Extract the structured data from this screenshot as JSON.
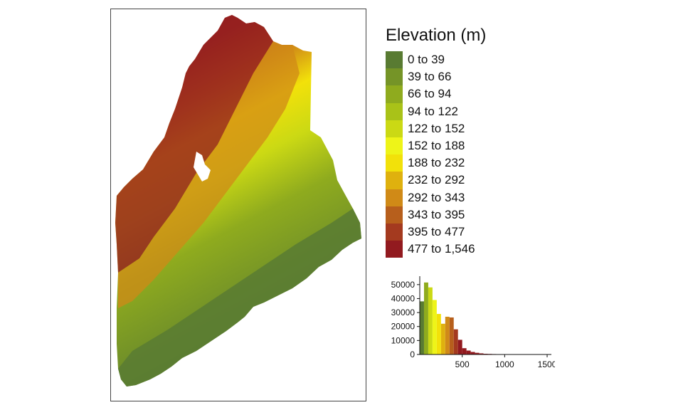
{
  "legend": {
    "title": "Elevation (m)",
    "classes": [
      {
        "label": "0 to 39",
        "color": "#597b32"
      },
      {
        "label": "39 to 66",
        "color": "#759427"
      },
      {
        "label": "66 to 94",
        "color": "#8fab1e"
      },
      {
        "label": "94 to 122",
        "color": "#a9c218"
      },
      {
        "label": "122 to 152",
        "color": "#cbd914"
      },
      {
        "label": "152 to 188",
        "color": "#eef418"
      },
      {
        "label": "188 to 232",
        "color": "#f2e10a"
      },
      {
        "label": "232 to 292",
        "color": "#dfb10e"
      },
      {
        "label": "292 to 343",
        "color": "#d08a17"
      },
      {
        "label": "343 to 395",
        "color": "#b75f1c"
      },
      {
        "label": "395 to 477",
        "color": "#a43a1f"
      },
      {
        "label": "477 to 1,546",
        "color": "#921a1f"
      }
    ]
  },
  "chart_data": {
    "type": "bar",
    "x": [
      0,
      50,
      100,
      150,
      200,
      250,
      300,
      350,
      400,
      450,
      500,
      550,
      600,
      650,
      700,
      750,
      800,
      850,
      900,
      950,
      1000,
      1050,
      1100,
      1150,
      1200,
      1250,
      1300,
      1350,
      1400,
      1450
    ],
    "values": [
      38000,
      51500,
      48000,
      39000,
      29000,
      22000,
      27000,
      26500,
      18000,
      10500,
      4500,
      2800,
      1800,
      1200,
      800,
      500,
      400,
      300,
      200,
      150,
      120,
      100,
      80,
      60,
      50,
      40,
      30,
      20,
      10,
      5
    ],
    "bar_colors": [
      "#597b32",
      "#8fab1e",
      "#cbd914",
      "#eef418",
      "#f2e10a",
      "#dfb10e",
      "#d08a17",
      "#b75f1c",
      "#a43a1f",
      "#921a1f",
      "#921a1f",
      "#921a1f",
      "#921a1f",
      "#921a1f",
      "#921a1f",
      "#921a1f",
      "#921a1f",
      "#921a1f",
      "#921a1f",
      "#921a1f",
      "#921a1f",
      "#921a1f",
      "#921a1f",
      "#921a1f",
      "#921a1f",
      "#921a1f",
      "#921a1f",
      "#921a1f",
      "#921a1f",
      "#921a1f"
    ],
    "xticks": [
      500,
      1000,
      1500
    ],
    "xtick_labels": [
      "500",
      "1000",
      "1500"
    ],
    "yticks": [
      0,
      10000,
      20000,
      30000,
      40000,
      50000
    ],
    "ytick_labels": [
      "0",
      "10000",
      "20000",
      "30000",
      "40000",
      "50000"
    ],
    "xlim": [
      0,
      1550
    ],
    "ylim": [
      0,
      55000
    ],
    "xlabel": "",
    "ylabel": "",
    "grid": false
  }
}
